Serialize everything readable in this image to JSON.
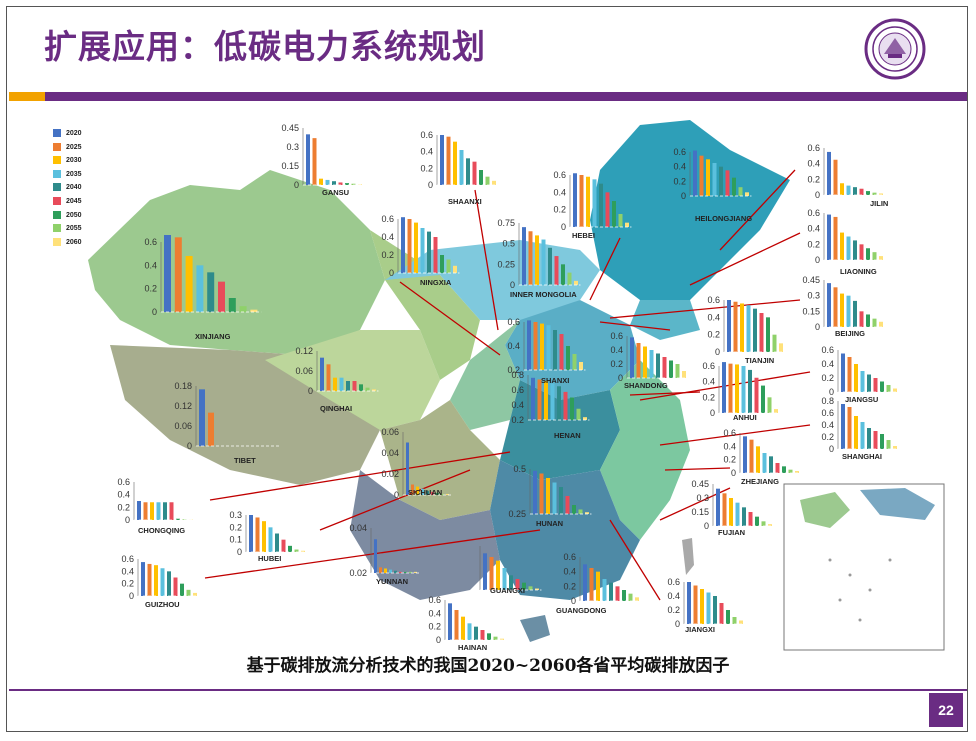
{
  "slide": {
    "title": "扩展应用：低碳电力系统规划",
    "caption": "基于碳排放流分析技术的我国2020~2060各省平均碳排放因子",
    "page_number": "22"
  },
  "colors": {
    "accent_purple": "#6a2c83",
    "accent_orange": "#f2a200",
    "arrow": "#c00000"
  },
  "legend": [
    {
      "label": "2020",
      "color": "#4472c4"
    },
    {
      "label": "2025",
      "color": "#ed7d31"
    },
    {
      "label": "2030",
      "color": "#ffc000"
    },
    {
      "label": "2035",
      "color": "#5bc0de"
    },
    {
      "label": "2040",
      "color": "#2e8b8b"
    },
    {
      "label": "2045",
      "color": "#e84b5a"
    },
    {
      "label": "2050",
      "color": "#2e9e5b"
    },
    {
      "label": "2055",
      "color": "#8fd16a"
    },
    {
      "label": "2060",
      "color": "#ffe17a"
    }
  ],
  "chart_data": [
    {
      "type": "bar",
      "province": "GANSU",
      "ticks": [
        "0.45",
        "0.3",
        "0.15",
        "0"
      ],
      "ymax": 0.45,
      "values": [
        0.4,
        0.37,
        0.05,
        0.04,
        0.03,
        0.02,
        0.015,
        0.01,
        0.005
      ]
    },
    {
      "type": "bar",
      "province": "SHAANXI",
      "ticks": [
        "0.6",
        "0.4",
        "0.2",
        "0"
      ],
      "ymax": 0.6,
      "values": [
        0.6,
        0.58,
        0.52,
        0.42,
        0.32,
        0.28,
        0.18,
        0.1,
        0.05
      ]
    },
    {
      "type": "bar",
      "province": "NINGXIA",
      "ticks": [
        "0.6",
        "0.4",
        "0.2",
        "0"
      ],
      "ymax": 0.6,
      "values": [
        0.62,
        0.6,
        0.56,
        0.5,
        0.46,
        0.4,
        0.2,
        0.15,
        0.08
      ]
    },
    {
      "type": "bar",
      "province": "INNER MONGOLIA",
      "ticks": [
        "0.75",
        "0.5",
        "0.25",
        "0"
      ],
      "ymax": 0.75,
      "values": [
        0.7,
        0.65,
        0.6,
        0.55,
        0.45,
        0.35,
        0.25,
        0.15,
        0.05
      ]
    },
    {
      "type": "bar",
      "province": "HEBEI",
      "ticks": [
        "0.6",
        "0.4",
        "0.2",
        "0"
      ],
      "ymax": 0.6,
      "values": [
        0.62,
        0.6,
        0.58,
        0.55,
        0.5,
        0.4,
        0.3,
        0.15,
        0.05
      ]
    },
    {
      "type": "bar",
      "province": "HEILONGJIANG",
      "ticks": [
        "0.6",
        "0.4",
        "0.2",
        "0"
      ],
      "ymax": 0.6,
      "values": [
        0.62,
        0.55,
        0.5,
        0.45,
        0.4,
        0.35,
        0.25,
        0.12,
        0.05
      ]
    },
    {
      "type": "bar",
      "province": "JILIN",
      "ticks": [
        "0.6",
        "0.4",
        "0.2",
        "0"
      ],
      "ymax": 0.6,
      "values": [
        0.55,
        0.45,
        0.15,
        0.12,
        0.1,
        0.08,
        0.05,
        0.03,
        0.02
      ]
    },
    {
      "type": "bar",
      "province": "LIAONING",
      "ticks": [
        "0.6",
        "0.4",
        "0.2",
        "0"
      ],
      "ymax": 0.6,
      "values": [
        0.58,
        0.55,
        0.35,
        0.3,
        0.25,
        0.2,
        0.15,
        0.1,
        0.05
      ]
    },
    {
      "type": "bar",
      "province": "BEIJING",
      "ticks": [
        "0.45",
        "0.3",
        "0.15",
        "0"
      ],
      "ymax": 0.45,
      "values": [
        0.42,
        0.38,
        0.32,
        0.3,
        0.25,
        0.15,
        0.12,
        0.08,
        0.05
      ]
    },
    {
      "type": "bar",
      "province": "TIANJIN",
      "ticks": [
        "0.6",
        "0.4",
        "0.2",
        "0"
      ],
      "ymax": 0.6,
      "values": [
        0.6,
        0.58,
        0.56,
        0.54,
        0.5,
        0.45,
        0.4,
        0.2,
        0.1
      ]
    },
    {
      "type": "bar",
      "province": "SHANDONG",
      "ticks": [
        "0.6",
        "0.4",
        "0.2",
        "0"
      ],
      "ymax": 0.6,
      "values": [
        0.58,
        0.5,
        0.45,
        0.4,
        0.35,
        0.3,
        0.25,
        0.2,
        0.1
      ]
    },
    {
      "type": "bar",
      "province": "ANHUI",
      "ticks": [
        "0.6",
        "0.4",
        "0.2",
        "0"
      ],
      "ymax": 0.6,
      "values": [
        0.65,
        0.63,
        0.62,
        0.6,
        0.55,
        0.45,
        0.35,
        0.2,
        0.05
      ]
    },
    {
      "type": "bar",
      "province": "JIANGSU",
      "ticks": [
        "0.6",
        "0.4",
        "0.2",
        "0"
      ],
      "ymax": 0.6,
      "values": [
        0.55,
        0.5,
        0.4,
        0.3,
        0.25,
        0.2,
        0.15,
        0.1,
        0.05
      ]
    },
    {
      "type": "bar",
      "province": "SHANGHAI",
      "ticks": [
        "0.8",
        "0.6",
        "0.4",
        "0.2",
        "0"
      ],
      "ymax": 0.8,
      "values": [
        0.75,
        0.7,
        0.55,
        0.45,
        0.35,
        0.3,
        0.25,
        0.15,
        0.05
      ]
    },
    {
      "type": "bar",
      "province": "ZHEJIANG",
      "ticks": [
        "0.6",
        "0.4",
        "0.2",
        "0"
      ],
      "ymax": 0.6,
      "values": [
        0.55,
        0.5,
        0.4,
        0.3,
        0.25,
        0.15,
        0.1,
        0.05,
        0.03
      ]
    },
    {
      "type": "bar",
      "province": "FUJIAN",
      "ticks": [
        "0.45",
        "0.3",
        "0.15",
        "0"
      ],
      "ymax": 0.45,
      "values": [
        0.4,
        0.35,
        0.3,
        0.25,
        0.2,
        0.15,
        0.1,
        0.05,
        0.02
      ]
    },
    {
      "type": "bar",
      "province": "JIANGXI",
      "ticks": [
        "0.6",
        "0.4",
        "0.2",
        "0"
      ],
      "ymax": 0.6,
      "values": [
        0.6,
        0.55,
        0.5,
        0.45,
        0.4,
        0.3,
        0.2,
        0.1,
        0.05
      ]
    },
    {
      "type": "bar",
      "province": "GUANGDONG",
      "ticks": [
        "0.6",
        "0.4",
        "0.2",
        "0"
      ],
      "ymax": 0.6,
      "values": [
        0.5,
        0.45,
        0.4,
        0.3,
        0.25,
        0.2,
        0.15,
        0.1,
        0.05
      ]
    },
    {
      "type": "bar",
      "province": "HAINAN",
      "ticks": [
        "0.6",
        "0.4",
        "0.2",
        "0"
      ],
      "ymax": 0.6,
      "values": [
        0.55,
        0.45,
        0.35,
        0.25,
        0.2,
        0.15,
        0.1,
        0.05,
        0.02
      ]
    },
    {
      "type": "bar",
      "province": "GUANGXI",
      "ticks": [],
      "ymax": 0.6,
      "values": [
        0.5,
        0.45,
        0.4,
        0.3,
        0.2,
        0.15,
        0.1,
        0.05,
        0.02
      ]
    },
    {
      "type": "bar",
      "province": "HUNAN",
      "ticks": [
        "0.5",
        "0.25"
      ],
      "ymax": 0.5,
      "values": [
        0.48,
        0.45,
        0.4,
        0.35,
        0.3,
        0.2,
        0.1,
        0.05,
        0.02
      ]
    },
    {
      "type": "bar",
      "province": "HENAN",
      "ticks": [
        "0.8",
        "0.6",
        "0.4",
        "0.2"
      ],
      "ymax": 0.8,
      "values": [
        0.75,
        0.72,
        0.7,
        0.65,
        0.6,
        0.5,
        0.4,
        0.2,
        0.05
      ]
    },
    {
      "type": "bar",
      "province": "SHANXI",
      "ticks": [
        "0.6",
        "0.4",
        "0.2"
      ],
      "ymax": 0.6,
      "values": [
        0.62,
        0.6,
        0.58,
        0.56,
        0.5,
        0.45,
        0.3,
        0.2,
        0.1
      ]
    },
    {
      "type": "bar",
      "province": "XINJIANG",
      "ticks": [
        "0.6",
        "0.4",
        "0.2",
        "0"
      ],
      "ymax": 0.6,
      "values": [
        0.66,
        0.64,
        0.48,
        0.4,
        0.34,
        0.26,
        0.12,
        0.05,
        0.02
      ]
    },
    {
      "type": "bar",
      "province": "QINGHAI",
      "ticks": [
        "0.12",
        "0.06",
        "0"
      ],
      "ymax": 0.12,
      "values": [
        0.1,
        0.08,
        0.04,
        0.04,
        0.03,
        0.03,
        0.02,
        0.01,
        0.005
      ]
    },
    {
      "type": "bar",
      "province": "TIBET",
      "ticks": [
        "0.18",
        "0.12",
        "0.06",
        "0"
      ],
      "ymax": 0.18,
      "values": [
        0.17,
        0.1,
        0,
        0,
        0,
        0,
        0,
        0,
        0
      ]
    },
    {
      "type": "bar",
      "province": "SICHUAN",
      "ticks": [
        "0.06",
        "0.04",
        "0.02",
        "0"
      ],
      "ymax": 0.06,
      "values": [
        0.05,
        0.01,
        0.008,
        0.006,
        0.004,
        0.003,
        0.002,
        0.001,
        0.001
      ]
    },
    {
      "type": "bar",
      "province": "CHONGQING",
      "ticks": [
        "0.6",
        "0.4",
        "0.2",
        "0"
      ],
      "ymax": 0.6,
      "values": [
        0.3,
        0.28,
        0.28,
        0.28,
        0.28,
        0.28,
        0.02,
        0.01,
        0.005
      ]
    },
    {
      "type": "bar",
      "province": "HUBEI",
      "ticks": [
        "0.3",
        "0.2",
        "0.1",
        "0"
      ],
      "ymax": 0.3,
      "values": [
        0.3,
        0.28,
        0.25,
        0.2,
        0.15,
        0.1,
        0.05,
        0.02,
        0.01
      ]
    },
    {
      "type": "bar",
      "province": "GUIZHOU",
      "ticks": [
        "0.6",
        "0.4",
        "0.2",
        "0"
      ],
      "ymax": 0.6,
      "values": [
        0.55,
        0.52,
        0.5,
        0.45,
        0.4,
        0.3,
        0.2,
        0.1,
        0.05
      ]
    },
    {
      "type": "bar",
      "province": "YUNNAN",
      "ticks": [
        "0.04",
        "0.02"
      ],
      "ymax": 0.04,
      "values": [
        0.03,
        0.005,
        0.004,
        0.003,
        0.002,
        0.001,
        0.001,
        0.001,
        0.001
      ]
    }
  ]
}
